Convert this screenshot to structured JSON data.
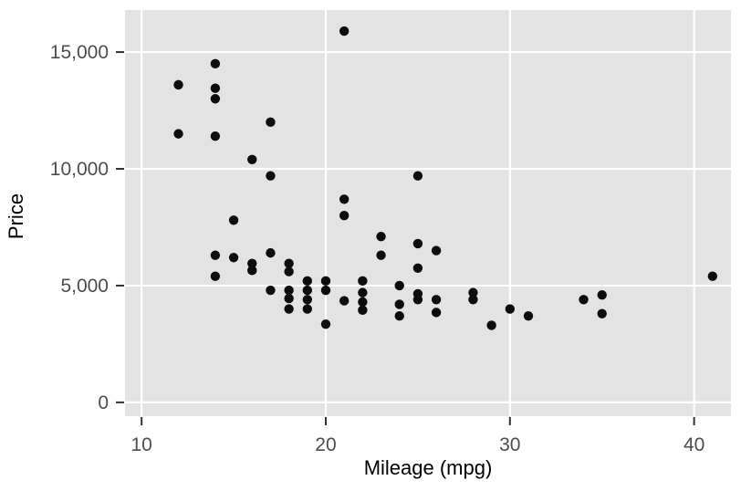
{
  "chart_data": {
    "type": "scatter",
    "title": "",
    "xlabel": "Mileage (mpg)",
    "ylabel": "Price",
    "xlim": [
      9.1,
      42.0
    ],
    "ylim": [
      -590,
      16800
    ],
    "grid": "major-only",
    "legend": "none",
    "x_ticks": [
      {
        "value": 10,
        "label": "10"
      },
      {
        "value": 20,
        "label": "20"
      },
      {
        "value": 30,
        "label": "30"
      },
      {
        "value": 40,
        "label": "40"
      }
    ],
    "y_ticks": [
      {
        "value": 0,
        "label": "0"
      },
      {
        "value": 5000,
        "label": "5,000"
      },
      {
        "value": 10000,
        "label": "10,000"
      },
      {
        "value": 15000,
        "label": "15,000"
      }
    ],
    "points": [
      [
        12,
        13600
      ],
      [
        12,
        11500
      ],
      [
        14,
        14500
      ],
      [
        14,
        13450
      ],
      [
        14,
        13000
      ],
      [
        14,
        11400
      ],
      [
        14,
        6300
      ],
      [
        14,
        5400
      ],
      [
        15,
        7800
      ],
      [
        15,
        6200
      ],
      [
        16,
        10400
      ],
      [
        16,
        5950
      ],
      [
        16,
        5650
      ],
      [
        17,
        12000
      ],
      [
        17,
        9700
      ],
      [
        17,
        6400
      ],
      [
        17,
        4800
      ],
      [
        18,
        5950
      ],
      [
        18,
        5600
      ],
      [
        18,
        4800
      ],
      [
        18,
        4450
      ],
      [
        18,
        4000
      ],
      [
        19,
        5200
      ],
      [
        19,
        4800
      ],
      [
        19,
        4400
      ],
      [
        19,
        4000
      ],
      [
        20,
        5200
      ],
      [
        20,
        4800
      ],
      [
        20,
        3350
      ],
      [
        21,
        15900
      ],
      [
        21,
        8700
      ],
      [
        21,
        8000
      ],
      [
        21,
        4350
      ],
      [
        22,
        5200
      ],
      [
        22,
        4700
      ],
      [
        22,
        4300
      ],
      [
        22,
        3950
      ],
      [
        23,
        7100
      ],
      [
        23,
        6300
      ],
      [
        24,
        5000
      ],
      [
        24,
        4200
      ],
      [
        24,
        3700
      ],
      [
        25,
        9700
      ],
      [
        25,
        6800
      ],
      [
        25,
        5750
      ],
      [
        25,
        4650
      ],
      [
        25,
        4400
      ],
      [
        26,
        6500
      ],
      [
        26,
        4400
      ],
      [
        26,
        3850
      ],
      [
        28,
        4700
      ],
      [
        28,
        4400
      ],
      [
        29,
        3300
      ],
      [
        30,
        4000
      ],
      [
        31,
        3700
      ],
      [
        34,
        4400
      ],
      [
        35,
        4600
      ],
      [
        35,
        3800
      ],
      [
        41,
        5400
      ]
    ]
  },
  "style": {
    "panel_bg": "#e3e3e3",
    "grid_color": "#ffffff",
    "point_color": "#0d0d0d",
    "tick_mark_color": "#333333",
    "tick_label_color": "#4d4d4d",
    "axis_title_color": "#000000",
    "outer_bg": "#ffffff"
  }
}
